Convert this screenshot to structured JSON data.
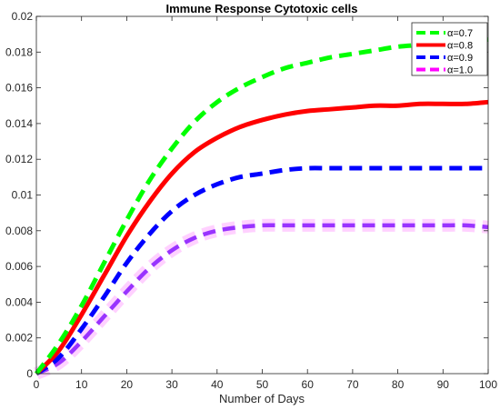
{
  "chart_data": {
    "type": "line",
    "title": "Immune Response Cytotoxic cells",
    "xlabel": "Number of Days",
    "ylabel": "",
    "xlim": [
      0,
      100
    ],
    "ylim": [
      0,
      0.02
    ],
    "xticks": [
      "0",
      "10",
      "20",
      "30",
      "40",
      "50",
      "60",
      "70",
      "80",
      "90",
      "100"
    ],
    "yticks": [
      "0",
      "0.002",
      "0.004",
      "0.006",
      "0.008",
      "0.01",
      "0.012",
      "0.014",
      "0.016",
      "0.018",
      "0.02"
    ],
    "legend_position": "top-right",
    "grid": false,
    "series": [
      {
        "name": "α=0.7",
        "color": "#00ff00",
        "dash": "dashed",
        "x": [
          0,
          5,
          10,
          15,
          20,
          25,
          30,
          35,
          40,
          45,
          50,
          55,
          60,
          65,
          70,
          75,
          80,
          85,
          90,
          95,
          100
        ],
        "y": [
          0,
          0.0017,
          0.0038,
          0.0062,
          0.0086,
          0.0108,
          0.0126,
          0.0141,
          0.0152,
          0.016,
          0.0166,
          0.0171,
          0.0174,
          0.0177,
          0.0179,
          0.0181,
          0.0183,
          0.0184,
          0.0185,
          0.0186,
          0.0187
        ]
      },
      {
        "name": "α=0.8",
        "color": "#ff0000",
        "dash": "solid",
        "x": [
          0,
          5,
          10,
          15,
          20,
          25,
          30,
          35,
          40,
          45,
          50,
          55,
          60,
          65,
          70,
          75,
          80,
          85,
          90,
          95,
          100
        ],
        "y": [
          0,
          0.0013,
          0.0033,
          0.0055,
          0.0077,
          0.0096,
          0.0112,
          0.0124,
          0.0132,
          0.0138,
          0.0142,
          0.0145,
          0.0147,
          0.0148,
          0.0149,
          0.015,
          0.015,
          0.0151,
          0.0151,
          0.0151,
          0.0152
        ]
      },
      {
        "name": "α=0.9",
        "color": "#0000ff",
        "dash": "dashed",
        "x": [
          0,
          5,
          10,
          15,
          20,
          25,
          30,
          35,
          40,
          45,
          50,
          55,
          60,
          65,
          70,
          75,
          80,
          85,
          90,
          95,
          100
        ],
        "y": [
          0,
          0.0009,
          0.0025,
          0.0043,
          0.0062,
          0.0078,
          0.0091,
          0.01,
          0.0106,
          0.011,
          0.0112,
          0.0114,
          0.0115,
          0.0115,
          0.0115,
          0.0115,
          0.0115,
          0.0115,
          0.0115,
          0.0115,
          0.0115
        ]
      },
      {
        "name": "α=1.0",
        "color": "#ff00ff",
        "overlay_color": "#9933ff",
        "dash": "dashed",
        "x": [
          0,
          5,
          10,
          15,
          20,
          25,
          30,
          35,
          40,
          45,
          50,
          55,
          60,
          65,
          70,
          75,
          80,
          85,
          90,
          95,
          100
        ],
        "y": [
          0,
          0.0006,
          0.0018,
          0.0032,
          0.0046,
          0.0059,
          0.0069,
          0.0076,
          0.008,
          0.0082,
          0.0083,
          0.0083,
          0.0083,
          0.0083,
          0.0083,
          0.0083,
          0.0083,
          0.0083,
          0.0083,
          0.0083,
          0.0082
        ]
      }
    ]
  }
}
